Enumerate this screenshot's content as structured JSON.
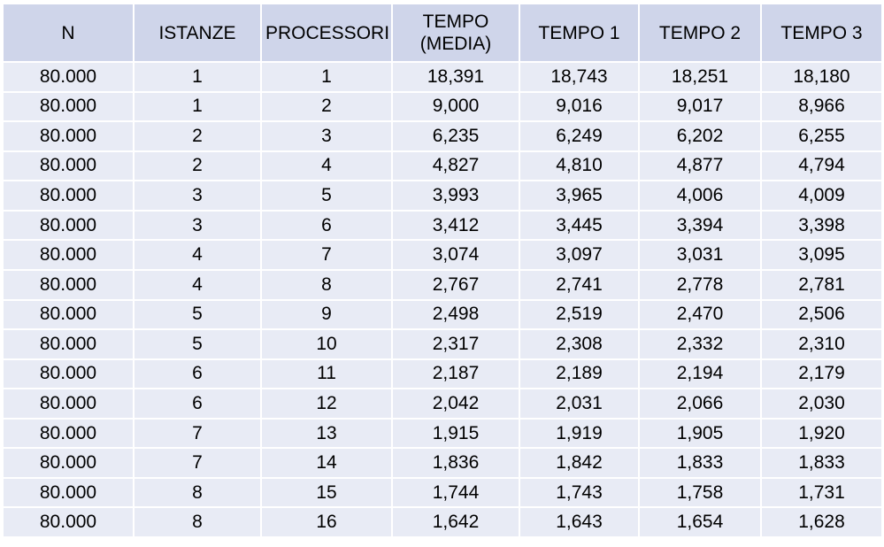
{
  "table": {
    "headers": [
      "N",
      "ISTANZE",
      "PROCESSORI",
      "TEMPO\n(MEDIA)",
      "TEMPO 1",
      "TEMPO 2",
      "TEMPO 3"
    ],
    "rows": [
      [
        "80.000",
        "1",
        "1",
        "18,391",
        "18,743",
        "18,251",
        "18,180"
      ],
      [
        "80.000",
        "1",
        "2",
        "9,000",
        "9,016",
        "9,017",
        "8,966"
      ],
      [
        "80.000",
        "2",
        "3",
        "6,235",
        "6,249",
        "6,202",
        "6,255"
      ],
      [
        "80.000",
        "2",
        "4",
        "4,827",
        "4,810",
        "4,877",
        "4,794"
      ],
      [
        "80.000",
        "3",
        "5",
        "3,993",
        "3,965",
        "4,006",
        "4,009"
      ],
      [
        "80.000",
        "3",
        "6",
        "3,412",
        "3,445",
        "3,394",
        "3,398"
      ],
      [
        "80.000",
        "4",
        "7",
        "3,074",
        "3,097",
        "3,031",
        "3,095"
      ],
      [
        "80.000",
        "4",
        "8",
        "2,767",
        "2,741",
        "2,778",
        "2,781"
      ],
      [
        "80.000",
        "5",
        "9",
        "2,498",
        "2,519",
        "2,470",
        "2,506"
      ],
      [
        "80.000",
        "5",
        "10",
        "2,317",
        "2,308",
        "2,332",
        "2,310"
      ],
      [
        "80.000",
        "6",
        "11",
        "2,187",
        "2,189",
        "2,194",
        "2,179"
      ],
      [
        "80.000",
        "6",
        "12",
        "2,042",
        "2,031",
        "2,066",
        "2,030"
      ],
      [
        "80.000",
        "7",
        "13",
        "1,915",
        "1,919",
        "1,905",
        "1,920"
      ],
      [
        "80.000",
        "7",
        "14",
        "1,836",
        "1,842",
        "1,833",
        "1,833"
      ],
      [
        "80.000",
        "8",
        "15",
        "1,744",
        "1,743",
        "1,758",
        "1,731"
      ],
      [
        "80.000",
        "8",
        "16",
        "1,642",
        "1,643",
        "1,654",
        "1,628"
      ]
    ]
  },
  "colors": {
    "header_bg": "#cfd5ea",
    "row_bg": "#e8ebf5",
    "text": "#000000"
  }
}
